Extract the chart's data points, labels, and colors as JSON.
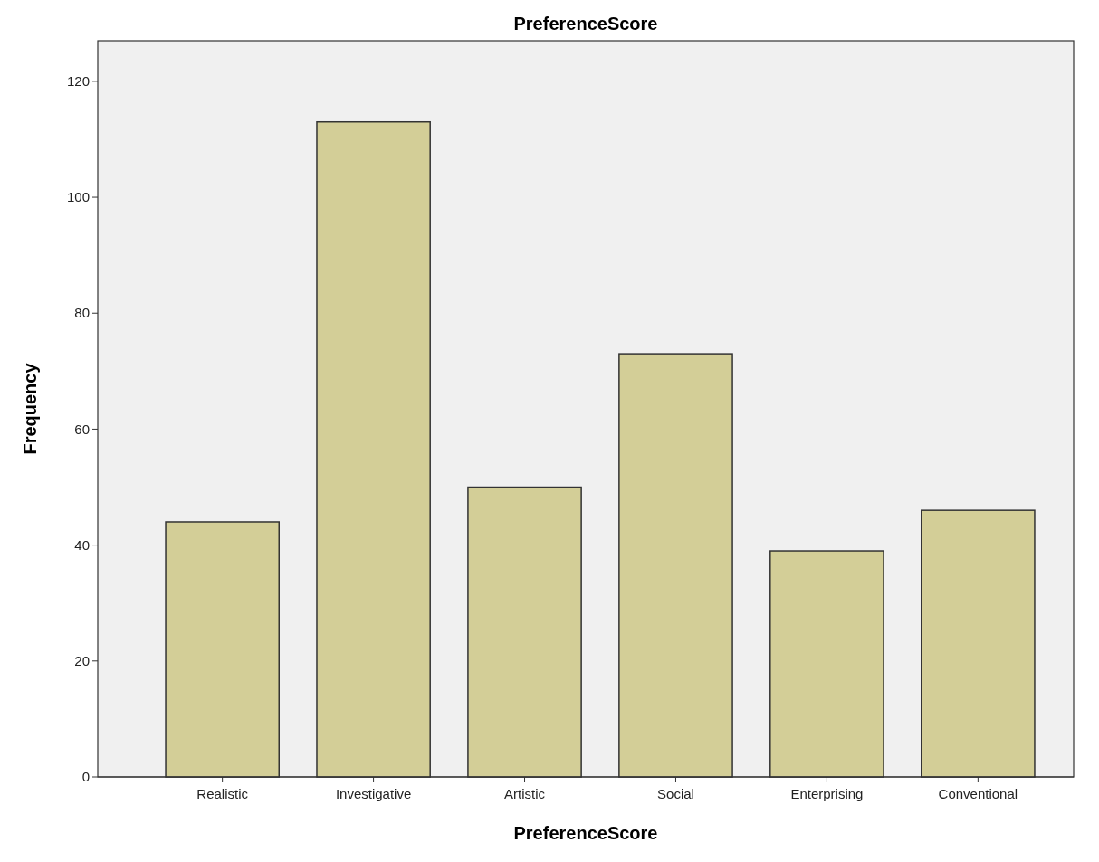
{
  "chart_data": {
    "type": "bar",
    "title": "PreferenceScore",
    "xlabel": "PreferenceScore",
    "ylabel": "Frequency",
    "categories": [
      "Realistic",
      "Investigative",
      "Artistic",
      "Social",
      "Enterprising",
      "Conventional"
    ],
    "values": [
      44,
      113,
      50,
      73,
      39,
      46
    ],
    "color": "#d3ce97",
    "ylim": [
      0,
      127
    ],
    "yticks": [
      0,
      20,
      40,
      60,
      80,
      100,
      120
    ],
    "grid": false
  }
}
